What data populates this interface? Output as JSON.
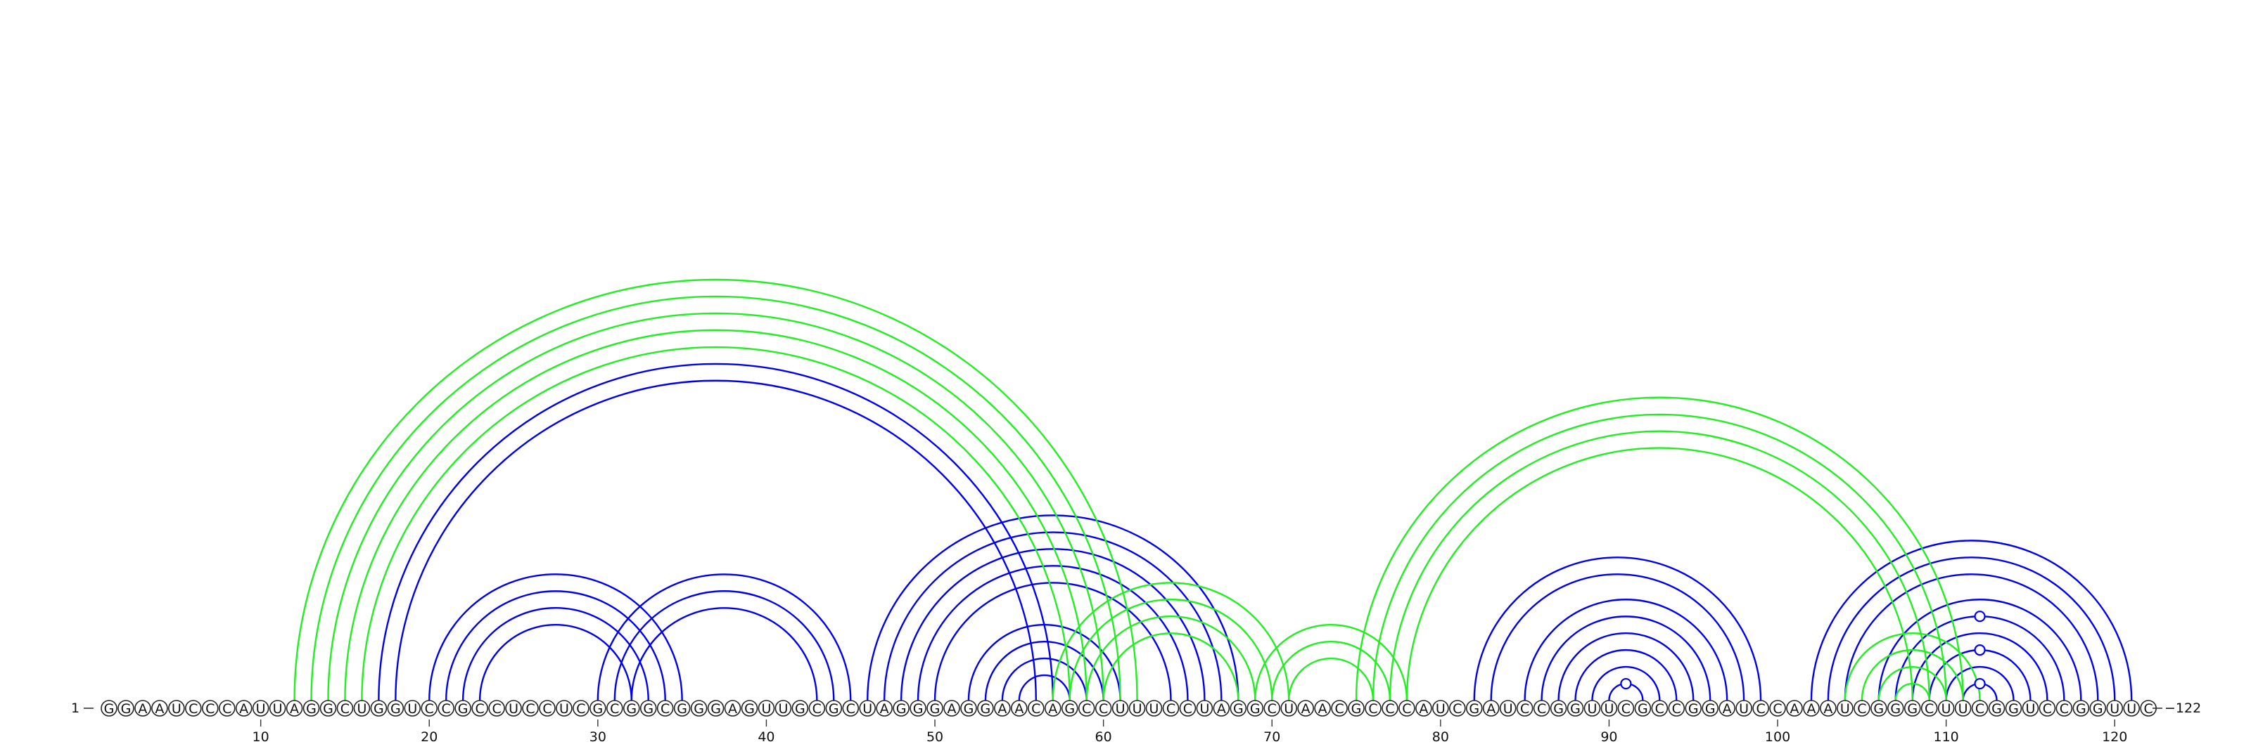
{
  "sequence": "GGAAUCCCAUUAGGCUGGUCCGCCUCCUCGCGGCGGGAGUUGCGCUAGGGAGGAACAGCCUUUCCUAGGCUAACGCCCAUCGAUCCGGUUCGCCGGAUCCAAAUCGGGCUUCGGUCCGGUUC",
  "start_label": "1",
  "end_label": "122",
  "ticks": [
    "10",
    "20",
    "30",
    "40",
    "50",
    "60",
    "70",
    "80",
    "90",
    "100",
    "110",
    "120"
  ],
  "colors": {
    "structure_a": "#0000ee",
    "structure_b": "#22ee22"
  },
  "arcs_blue": [
    [
      17,
      57
    ],
    [
      18,
      56
    ],
    [
      20,
      35
    ],
    [
      21,
      34
    ],
    [
      22,
      33
    ],
    [
      23,
      32
    ],
    [
      30,
      45
    ],
    [
      31,
      44
    ],
    [
      32,
      43
    ],
    [
      46,
      68
    ],
    [
      47,
      67
    ],
    [
      48,
      66
    ],
    [
      49,
      65
    ],
    [
      50,
      64
    ],
    [
      52,
      61
    ],
    [
      53,
      60
    ],
    [
      54,
      59
    ],
    [
      55,
      58
    ],
    [
      82,
      99
    ],
    [
      83,
      98
    ],
    [
      85,
      97
    ],
    [
      86,
      96
    ],
    [
      87,
      95
    ],
    [
      88,
      94
    ],
    [
      89,
      93
    ],
    [
      90,
      92
    ],
    [
      102,
      121
    ],
    [
      103,
      120
    ],
    [
      104,
      119
    ],
    [
      106,
      118
    ],
    [
      107,
      117
    ],
    [
      108,
      116
    ],
    [
      109,
      115
    ],
    [
      110,
      114
    ],
    [
      111,
      113
    ]
  ],
  "arcs_green": [
    [
      12,
      62
    ],
    [
      13,
      61
    ],
    [
      14,
      60
    ],
    [
      15,
      59
    ],
    [
      16,
      58
    ],
    [
      57,
      71
    ],
    [
      58,
      70
    ],
    [
      59,
      69
    ],
    [
      60,
      68
    ],
    [
      69,
      78
    ],
    [
      70,
      77
    ],
    [
      71,
      76
    ],
    [
      75,
      111
    ],
    [
      76,
      110
    ],
    [
      77,
      109
    ],
    [
      78,
      108
    ],
    [
      104,
      112
    ],
    [
      105,
      111
    ],
    [
      106,
      110
    ],
    [
      107,
      109
    ]
  ],
  "markers": [
    {
      "position": 91,
      "height_rank": 1
    },
    {
      "position": 112,
      "height_rank": 1
    },
    {
      "position": 112,
      "height_rank": 3
    },
    {
      "position": 112,
      "height_rank": 5
    }
  ]
}
